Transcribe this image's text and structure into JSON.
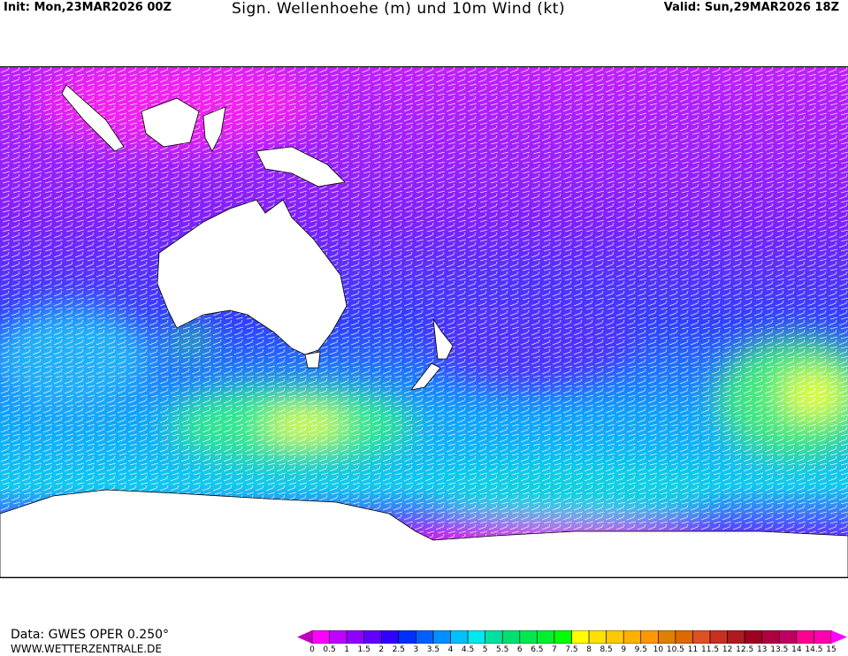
{
  "header": {
    "init": "Init: Mon,23MAR2026 00Z",
    "title": "Sign. Wellenhoehe (m) und 10m Wind (kt)",
    "valid": "Valid: Sun,29MAR2026 18Z"
  },
  "footer": {
    "data_source": "Data: GWES OPER 0.250°",
    "website": "WWW.WETTERZENTRALE.DE"
  },
  "legend": {
    "unit": "m",
    "labels": [
      "0",
      "0.5",
      "1",
      "1.5",
      "2",
      "2.5",
      "3",
      "3.5",
      "4",
      "4.5",
      "5",
      "5.5",
      "6",
      "6.5",
      "7",
      "7.5",
      "8",
      "8.5",
      "9",
      "9.5",
      "10",
      "10.5",
      "11",
      "11.5",
      "12",
      "12.5",
      "13",
      "13.5",
      "14",
      "14.5",
      "15"
    ],
    "colors": [
      "#ff00ff",
      "#c000ff",
      "#9000ff",
      "#6000ff",
      "#3000ff",
      "#0030ff",
      "#0060ff",
      "#0090ff",
      "#00c0ff",
      "#00e8f0",
      "#00e0a0",
      "#00e070",
      "#00e850",
      "#00f030",
      "#00ff00",
      "#ffff00",
      "#ffe000",
      "#ffc800",
      "#ffb000",
      "#ff9800",
      "#e08000",
      "#e06800",
      "#e05020",
      "#c83020",
      "#b01820",
      "#a00020",
      "#b00040",
      "#c00060",
      "#ff0090",
      "#ff00b0"
    ],
    "under_color": "#c000c0",
    "over_color": "#ff00ff"
  },
  "map": {
    "region": "Indian Ocean / Australia / South Pacific / Southern Ocean",
    "overlay": "wind barbs"
  }
}
